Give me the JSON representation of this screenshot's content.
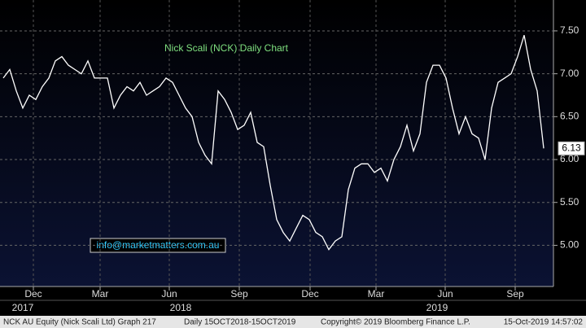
{
  "chart_data": {
    "type": "line",
    "title": "Nick Scali (NCK) Daily Chart",
    "annotation": "info@marketmatters.com.au",
    "footer": [
      "NCK AU Equity (Nick Scali Ltd) Graph 217",
      "Daily 15OCT2018-15OCT2019",
      "Copyright© 2019 Bloomberg Finance L.P.",
      "15-Oct-2019 14:57:02"
    ],
    "color": "#ffffff",
    "values": [
      6.95,
      7.05,
      6.8,
      6.6,
      6.75,
      6.7,
      6.85,
      6.95,
      7.15,
      7.2,
      7.1,
      7.05,
      7.0,
      7.15,
      6.95,
      6.95,
      6.95,
      6.6,
      6.75,
      6.85,
      6.8,
      6.9,
      6.75,
      6.8,
      6.85,
      6.95,
      6.9,
      6.75,
      6.6,
      6.5,
      6.2,
      6.05,
      5.95,
      6.8,
      6.7,
      6.55,
      6.35,
      6.4,
      6.55,
      6.2,
      6.15,
      5.7,
      5.3,
      5.15,
      5.05,
      5.2,
      5.35,
      5.3,
      5.15,
      5.1,
      4.95,
      5.05,
      5.1,
      5.65,
      5.9,
      5.95,
      5.95,
      5.85,
      5.9,
      5.75,
      6.0,
      6.15,
      6.4,
      6.1,
      6.3,
      6.9,
      7.1,
      7.1,
      6.95,
      6.6,
      6.3,
      6.5,
      6.3,
      6.25,
      6.0,
      6.6,
      6.9,
      6.95,
      7.0,
      7.2,
      7.45,
      7.05,
      6.8,
      6.13
    ],
    "last_price": 6.13,
    "xticks": [
      {
        "value": 4.625,
        "label": "Dec"
      },
      {
        "value": 14.875,
        "label": "Mar"
      },
      {
        "value": 25.5,
        "label": "Jun"
      },
      {
        "value": 36.25,
        "label": "Sep"
      },
      {
        "value": 47.125,
        "label": "Dec"
      },
      {
        "value": 57.25,
        "label": "Mar"
      },
      {
        "value": 67.875,
        "label": "Jun"
      },
      {
        "value": 78.625,
        "label": "Sep"
      }
    ],
    "year_labels": [
      {
        "value": 3,
        "label": "2017"
      },
      {
        "value": 27.25,
        "label": "2018"
      },
      {
        "value": 66.625,
        "label": "2019"
      }
    ],
    "ylim": [
      4.52,
      7.86
    ],
    "yticks": [
      {
        "value": 5,
        "label": "5.00"
      },
      {
        "value": 5.5,
        "label": "5.50"
      },
      {
        "value": 6,
        "label": "6.00"
      },
      {
        "value": 6.5,
        "label": "6.50"
      },
      {
        "value": 7,
        "label": "7.00"
      },
      {
        "value": 7.5,
        "label": "7.50"
      }
    ],
    "grid": true
  }
}
